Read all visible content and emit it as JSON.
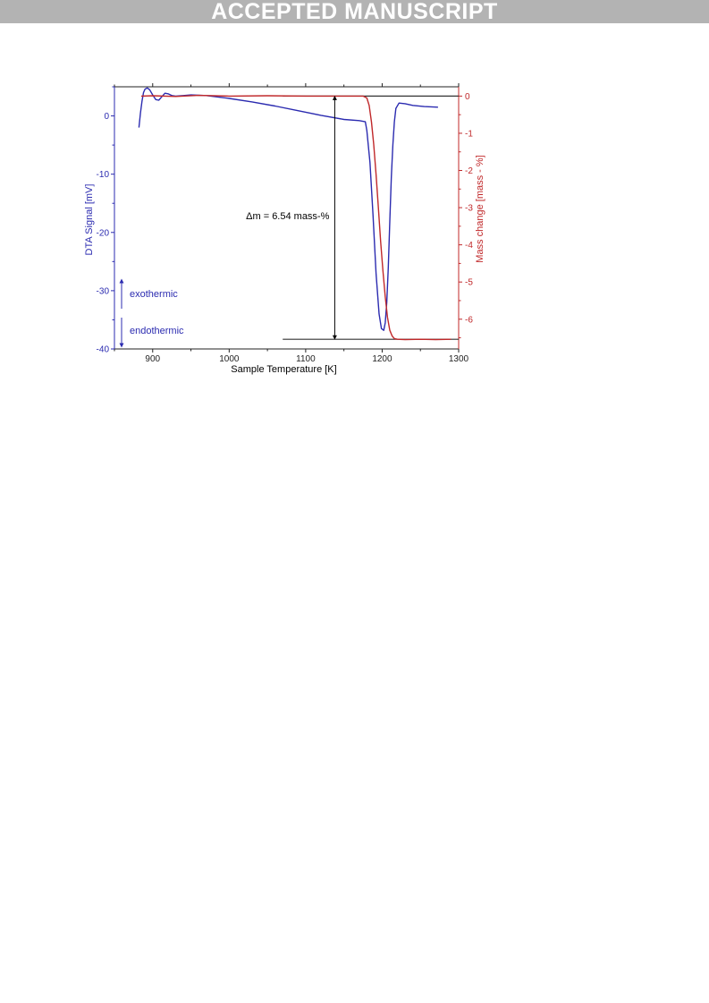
{
  "banner": "ACCEPTED MANUSCRIPT",
  "colors": {
    "dta": "#2b2bb0",
    "mass": "#c0282a",
    "axis": "#222222",
    "banner": "#b3b3b3"
  },
  "chart_data": {
    "type": "line",
    "xlabel": "Sample Temperature [K]",
    "ylabel_left": "DTA Signal [mV]",
    "ylabel_right": "Mass change [mass - %]",
    "xlim": [
      850,
      1300
    ],
    "ylim_left": [
      -40,
      5
    ],
    "ylim_right": [
      -6.8,
      0.25
    ],
    "x_ticks": [
      900,
      1000,
      1100,
      1200,
      1300
    ],
    "y_ticks_left": [
      0,
      -10,
      -20,
      -30,
      -40
    ],
    "y_ticks_right": [
      0,
      -1,
      -2,
      -3,
      -4,
      -5,
      -6
    ],
    "grid": false,
    "series": [
      {
        "axis": "left",
        "color": "#2b2bb0",
        "x": [
          882,
          884,
          886,
          888,
          890,
          893,
          896,
          900,
          904,
          908,
          912,
          916,
          920,
          925,
          930,
          940,
          950,
          970,
          1000,
          1030,
          1060,
          1090,
          1120,
          1150,
          1170,
          1178,
          1180,
          1184,
          1188,
          1192,
          1196,
          1199,
          1202,
          1204,
          1206,
          1208,
          1210,
          1212,
          1214,
          1216,
          1218,
          1222,
          1230,
          1240,
          1255,
          1273
        ],
        "values": [
          -2.0,
          0.5,
          2.5,
          4.0,
          4.6,
          4.8,
          4.5,
          3.6,
          2.8,
          2.7,
          3.3,
          3.9,
          3.8,
          3.5,
          3.4,
          3.5,
          3.6,
          3.5,
          3.0,
          2.4,
          1.7,
          0.9,
          0.1,
          -0.6,
          -0.8,
          -1.0,
          -2.5,
          -8.0,
          -17.0,
          -27.0,
          -34.0,
          -36.5,
          -36.8,
          -35.5,
          -32.0,
          -26.0,
          -18.0,
          -10.5,
          -5.0,
          -1.0,
          1.3,
          2.2,
          2.1,
          1.8,
          1.6,
          1.5
        ]
      },
      {
        "axis": "right",
        "color": "#c0282a",
        "x": [
          885,
          900,
          930,
          960,
          1000,
          1050,
          1100,
          1150,
          1175,
          1180,
          1183,
          1186,
          1189,
          1192,
          1195,
          1198,
          1201,
          1204,
          1207,
          1210,
          1213,
          1216,
          1220,
          1230,
          1250,
          1270,
          1290
        ],
        "values": [
          0.0,
          0.01,
          -0.01,
          0.02,
          0.0,
          0.01,
          0.0,
          0.0,
          0.0,
          -0.05,
          -0.25,
          -0.7,
          -1.3,
          -2.1,
          -3.0,
          -3.9,
          -4.7,
          -5.4,
          -5.95,
          -6.3,
          -6.45,
          -6.52,
          -6.54,
          -6.55,
          -6.54,
          -6.55,
          -6.54
        ]
      }
    ],
    "reference_lines": [
      {
        "axis": "right",
        "y": 0.0,
        "x_from": 1070,
        "x_to": 1300
      },
      {
        "axis": "right",
        "y": -6.54,
        "x_from": 1070,
        "x_to": 1300
      }
    ],
    "annotations": {
      "delta_m": "Δm = 6.54 mass-%",
      "delta_m_x": 1138,
      "exothermic": "exothermic",
      "endothermic": "endothermic"
    }
  }
}
